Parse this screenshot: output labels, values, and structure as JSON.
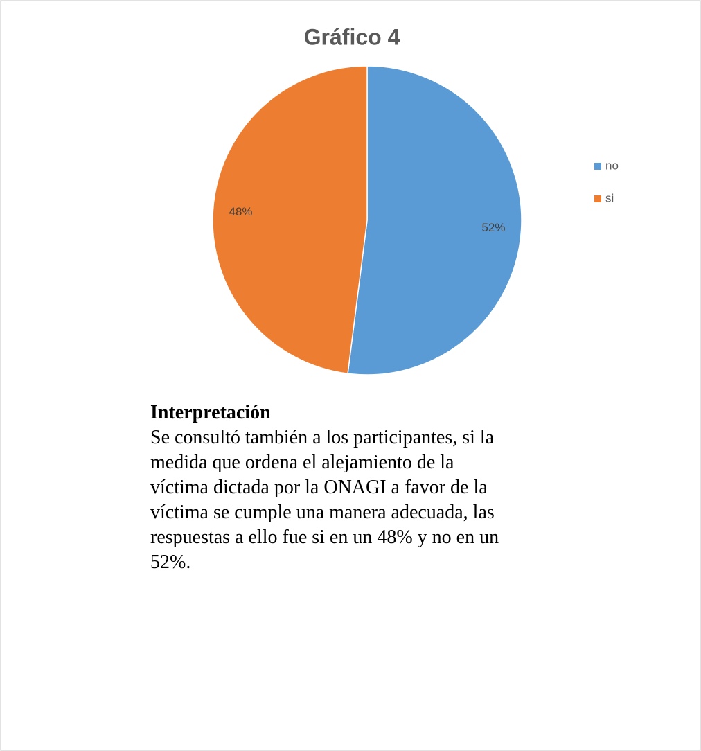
{
  "chart_data": {
    "type": "pie",
    "title": "Gráfico 4",
    "categories": [
      "no",
      "si"
    ],
    "values": [
      52,
      48
    ],
    "value_labels": [
      "52%",
      "48%"
    ],
    "colors": [
      "#5b9bd5",
      "#ed7d31"
    ],
    "legend": "right"
  },
  "text": {
    "heading": "Interpretación",
    "lines": [
      "Se consultó también a los participantes, si la",
      "medida que ordena el alejamiento de la",
      "víctima dictada por la ONAGI a favor de la",
      "víctima se cumple una manera adecuada, las",
      "respuestas a ello fue si en un 48% y no en un",
      "52%."
    ]
  }
}
